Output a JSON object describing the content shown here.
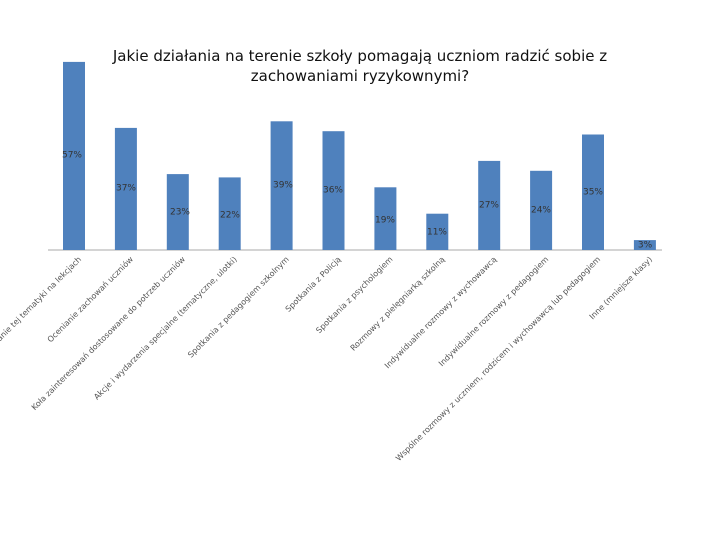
{
  "chart_data": {
    "type": "bar",
    "title": "Jakie działania na terenie szkoły pomagają uczniom radzić sobie z zachowaniami ryzykownymi?",
    "categories": [
      "Poruszanie tej tematyki na lekcjach",
      "Ocenianie zachowań uczniów",
      "Koła zainteresowań dostosowane do potrzeb uczniów",
      "Akcje i wydarzenia specjalne (tematyczne, ulotki)",
      "Spotkania z pedagogiem szkolnym",
      "Spotkania z Policją",
      "Spotkania z psychologiem",
      "Rozmowy z pielęgniarką szkolną",
      "Indywidualne rozmowy z wychowawcą",
      "Indywidualne rozmowy z pedagogiem",
      "Wspólne rozmowy z uczniem, rodzicem i wychowawcą lub pedagogiem",
      "Inne (mniejsze klasy)"
    ],
    "values": [
      57,
      37,
      23,
      22,
      39,
      36,
      19,
      11,
      27,
      24,
      35,
      3
    ],
    "value_labels": [
      "57%",
      "37%",
      "23%",
      "22%",
      "39%",
      "36%",
      "19%",
      "11%",
      "27%",
      "24%",
      "35%",
      "3%"
    ],
    "color": "#4f81bd"
  }
}
